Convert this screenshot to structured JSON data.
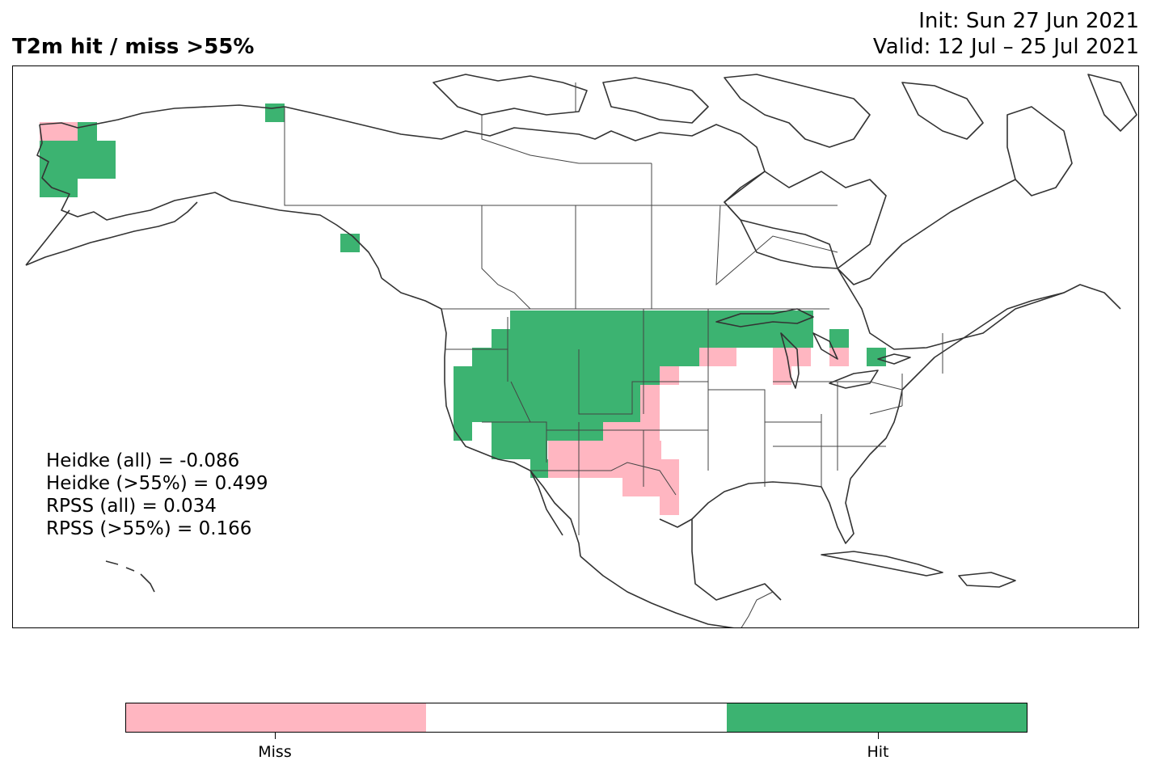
{
  "title": {
    "left": "T2m hit / miss  >55%",
    "init": "Init: Sun 27 Jun 2021",
    "valid": "Valid: 12 Jul – 25 Jul 2021"
  },
  "stats": [
    "Heidke (all) = -0.086",
    "Heidke (>55%) = 0.499",
    "RPSS (all) = 0.034",
    "RPSS (>55%) = 0.166"
  ],
  "colors": {
    "miss": "#ffb6c1",
    "neutral": "#ffffff",
    "hit": "#3cb371",
    "coast": "#333333"
  },
  "colorbar": {
    "labels": [
      "Miss",
      "Hit"
    ]
  }
}
